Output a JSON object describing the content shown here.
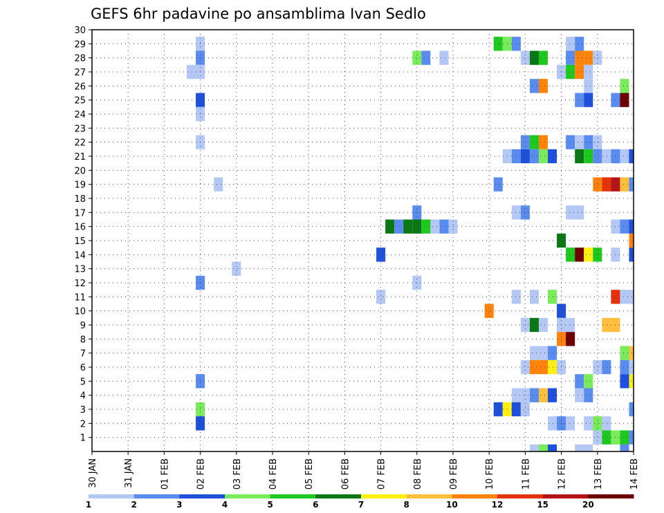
{
  "chart_data": {
    "type": "heatmap",
    "title": "GEFS 6hr padavine po ansamblima Ivan Sedlo",
    "xlabel": "",
    "ylabel": "",
    "x_tick_labels": [
      "30 JAN",
      "31 JAN",
      "01 FEB",
      "02 FEB",
      "03 FEB",
      "04 FEB",
      "05 FEB",
      "06 FEB",
      "07 FEB",
      "08 FEB",
      "09 FEB",
      "10 FEB",
      "11 FEB",
      "12 FEB",
      "13 FEB",
      "14 FEB"
    ],
    "y_tick_labels": [
      "1",
      "2",
      "3",
      "4",
      "5",
      "6",
      "7",
      "8",
      "9",
      "10",
      "11",
      "12",
      "13",
      "14",
      "15",
      "16",
      "17",
      "18",
      "19",
      "20",
      "21",
      "22",
      "23",
      "24",
      "25",
      "26",
      "27",
      "28",
      "29",
      "30"
    ],
    "x_unit": "6-hour step from 30 JAN 00Z",
    "x_range": [
      0,
      60
    ],
    "y_range": [
      0,
      30
    ],
    "grid": true,
    "colorbar": {
      "tick_labels": [
        "1",
        "2",
        "3",
        "4",
        "5",
        "6",
        "7",
        "8",
        "10",
        "12",
        "15",
        "20"
      ],
      "colors": [
        "#b4c8f5",
        "#5a8cf0",
        "#1e50dc",
        "#7aeb5a",
        "#1ec81e",
        "#0a7814",
        "#fff014",
        "#ffbe3c",
        "#ff820a",
        "#e6320a",
        "#b41414",
        "#6e0000"
      ]
    },
    "cells": [
      {
        "x": 12,
        "y": 29,
        "v": 1
      },
      {
        "x": 12,
        "y": 28,
        "v": 2
      },
      {
        "x": 11,
        "y": 27,
        "v": 1
      },
      {
        "x": 12,
        "y": 27,
        "v": 1
      },
      {
        "x": 12,
        "y": 25,
        "v": 3
      },
      {
        "x": 12,
        "y": 24,
        "v": 1
      },
      {
        "x": 12,
        "y": 22,
        "v": 1
      },
      {
        "x": 14,
        "y": 19,
        "v": 1
      },
      {
        "x": 16,
        "y": 13,
        "v": 1
      },
      {
        "x": 12,
        "y": 12,
        "v": 2
      },
      {
        "x": 12,
        "y": 5,
        "v": 2
      },
      {
        "x": 12,
        "y": 3,
        "v": 4
      },
      {
        "x": 12,
        "y": 2,
        "v": 3
      },
      {
        "x": 36,
        "y": 28,
        "v": 4
      },
      {
        "x": 37,
        "y": 28,
        "v": 2
      },
      {
        "x": 39,
        "y": 28,
        "v": 1
      },
      {
        "x": 36,
        "y": 17,
        "v": 2
      },
      {
        "x": 33,
        "y": 16,
        "v": 6
      },
      {
        "x": 34,
        "y": 16,
        "v": 2
      },
      {
        "x": 35,
        "y": 16,
        "v": 6
      },
      {
        "x": 36,
        "y": 16,
        "v": 6
      },
      {
        "x": 37,
        "y": 16,
        "v": 5
      },
      {
        "x": 38,
        "y": 16,
        "v": 1
      },
      {
        "x": 39,
        "y": 16,
        "v": 2
      },
      {
        "x": 40,
        "y": 16,
        "v": 1
      },
      {
        "x": 32,
        "y": 14,
        "v": 3
      },
      {
        "x": 36,
        "y": 12,
        "v": 1
      },
      {
        "x": 32,
        "y": 11,
        "v": 1
      },
      {
        "x": 45,
        "y": 29,
        "v": 5
      },
      {
        "x": 46,
        "y": 29,
        "v": 4
      },
      {
        "x": 47,
        "y": 29,
        "v": 2
      },
      {
        "x": 53,
        "y": 29,
        "v": 1
      },
      {
        "x": 54,
        "y": 29,
        "v": 2
      },
      {
        "x": 48,
        "y": 28,
        "v": 1
      },
      {
        "x": 49,
        "y": 28,
        "v": 6
      },
      {
        "x": 50,
        "y": 28,
        "v": 5
      },
      {
        "x": 53,
        "y": 28,
        "v": 2
      },
      {
        "x": 54,
        "y": 28,
        "v": 9
      },
      {
        "x": 55,
        "y": 28,
        "v": 9
      },
      {
        "x": 56,
        "y": 28,
        "v": 1
      },
      {
        "x": 52,
        "y": 27,
        "v": 1
      },
      {
        "x": 53,
        "y": 27,
        "v": 5
      },
      {
        "x": 54,
        "y": 27,
        "v": 9
      },
      {
        "x": 55,
        "y": 27,
        "v": 1
      },
      {
        "x": 49,
        "y": 26,
        "v": 2
      },
      {
        "x": 50,
        "y": 26,
        "v": 9
      },
      {
        "x": 55,
        "y": 26,
        "v": 1
      },
      {
        "x": 59,
        "y": 26,
        "v": 4
      },
      {
        "x": 54,
        "y": 25,
        "v": 2
      },
      {
        "x": 55,
        "y": 25,
        "v": 3
      },
      {
        "x": 58,
        "y": 25,
        "v": 2
      },
      {
        "x": 59,
        "y": 25,
        "v": 12
      },
      {
        "x": 48,
        "y": 22,
        "v": 2
      },
      {
        "x": 49,
        "y": 22,
        "v": 5
      },
      {
        "x": 50,
        "y": 22,
        "v": 9
      },
      {
        "x": 53,
        "y": 22,
        "v": 2
      },
      {
        "x": 54,
        "y": 22,
        "v": 1
      },
      {
        "x": 55,
        "y": 22,
        "v": 2
      },
      {
        "x": 56,
        "y": 22,
        "v": 1
      },
      {
        "x": 46,
        "y": 21,
        "v": 1
      },
      {
        "x": 47,
        "y": 21,
        "v": 2
      },
      {
        "x": 48,
        "y": 21,
        "v": 3
      },
      {
        "x": 49,
        "y": 21,
        "v": 2
      },
      {
        "x": 50,
        "y": 21,
        "v": 4
      },
      {
        "x": 51,
        "y": 21,
        "v": 3
      },
      {
        "x": 54,
        "y": 21,
        "v": 6
      },
      {
        "x": 55,
        "y": 21,
        "v": 5
      },
      {
        "x": 56,
        "y": 21,
        "v": 2
      },
      {
        "x": 57,
        "y": 21,
        "v": 1
      },
      {
        "x": 58,
        "y": 21,
        "v": 2
      },
      {
        "x": 59,
        "y": 21,
        "v": 1
      },
      {
        "x": 60,
        "y": 21,
        "v": 3
      },
      {
        "x": 45,
        "y": 19,
        "v": 2
      },
      {
        "x": 56,
        "y": 19,
        "v": 9
      },
      {
        "x": 57,
        "y": 19,
        "v": 10
      },
      {
        "x": 58,
        "y": 19,
        "v": 11
      },
      {
        "x": 59,
        "y": 19,
        "v": 8
      },
      {
        "x": 60,
        "y": 19,
        "v": 2
      },
      {
        "x": 47,
        "y": 17,
        "v": 1
      },
      {
        "x": 48,
        "y": 17,
        "v": 2
      },
      {
        "x": 53,
        "y": 17,
        "v": 1
      },
      {
        "x": 54,
        "y": 17,
        "v": 1
      },
      {
        "x": 58,
        "y": 16,
        "v": 1
      },
      {
        "x": 59,
        "y": 16,
        "v": 2
      },
      {
        "x": 60,
        "y": 16,
        "v": 3
      },
      {
        "x": 52,
        "y": 15,
        "v": 6
      },
      {
        "x": 60,
        "y": 15,
        "v": 9
      },
      {
        "x": 53,
        "y": 14,
        "v": 5
      },
      {
        "x": 54,
        "y": 14,
        "v": 12
      },
      {
        "x": 55,
        "y": 14,
        "v": 7
      },
      {
        "x": 56,
        "y": 14,
        "v": 5
      },
      {
        "x": 58,
        "y": 14,
        "v": 1
      },
      {
        "x": 60,
        "y": 14,
        "v": 3
      },
      {
        "x": 47,
        "y": 11,
        "v": 1
      },
      {
        "x": 49,
        "y": 11,
        "v": 1
      },
      {
        "x": 51,
        "y": 11,
        "v": 4
      },
      {
        "x": 58,
        "y": 11,
        "v": 10
      },
      {
        "x": 59,
        "y": 11,
        "v": 1
      },
      {
        "x": 60,
        "y": 11,
        "v": 1
      },
      {
        "x": 44,
        "y": 10,
        "v": 9
      },
      {
        "x": 52,
        "y": 10,
        "v": 3
      },
      {
        "x": 48,
        "y": 9,
        "v": 1
      },
      {
        "x": 49,
        "y": 9,
        "v": 6
      },
      {
        "x": 50,
        "y": 9,
        "v": 1
      },
      {
        "x": 52,
        "y": 9,
        "v": 1
      },
      {
        "x": 53,
        "y": 9,
        "v": 1
      },
      {
        "x": 57,
        "y": 9,
        "v": 8
      },
      {
        "x": 58,
        "y": 9,
        "v": 8
      },
      {
        "x": 52,
        "y": 8,
        "v": 9
      },
      {
        "x": 53,
        "y": 8,
        "v": 12
      },
      {
        "x": 49,
        "y": 7,
        "v": 1
      },
      {
        "x": 50,
        "y": 7,
        "v": 1
      },
      {
        "x": 51,
        "y": 7,
        "v": 2
      },
      {
        "x": 59,
        "y": 7,
        "v": 4
      },
      {
        "x": 60,
        "y": 7,
        "v": 8
      },
      {
        "x": 48,
        "y": 6,
        "v": 1
      },
      {
        "x": 49,
        "y": 6,
        "v": 9
      },
      {
        "x": 50,
        "y": 6,
        "v": 9
      },
      {
        "x": 51,
        "y": 6,
        "v": 7
      },
      {
        "x": 52,
        "y": 6,
        "v": 1
      },
      {
        "x": 56,
        "y": 6,
        "v": 1
      },
      {
        "x": 57,
        "y": 6,
        "v": 2
      },
      {
        "x": 59,
        "y": 6,
        "v": 2
      },
      {
        "x": 60,
        "y": 6,
        "v": 1
      },
      {
        "x": 54,
        "y": 5,
        "v": 2
      },
      {
        "x": 55,
        "y": 5,
        "v": 4
      },
      {
        "x": 59,
        "y": 5,
        "v": 3
      },
      {
        "x": 60,
        "y": 5,
        "v": 7
      },
      {
        "x": 47,
        "y": 4,
        "v": 1
      },
      {
        "x": 48,
        "y": 4,
        "v": 1
      },
      {
        "x": 49,
        "y": 4,
        "v": 2
      },
      {
        "x": 50,
        "y": 4,
        "v": 8
      },
      {
        "x": 51,
        "y": 4,
        "v": 3
      },
      {
        "x": 54,
        "y": 4,
        "v": 1
      },
      {
        "x": 55,
        "y": 4,
        "v": 2
      },
      {
        "x": 45,
        "y": 3,
        "v": 3
      },
      {
        "x": 46,
        "y": 3,
        "v": 7
      },
      {
        "x": 47,
        "y": 3,
        "v": 3
      },
      {
        "x": 48,
        "y": 3,
        "v": 1
      },
      {
        "x": 60,
        "y": 3,
        "v": 2
      },
      {
        "x": 51,
        "y": 2,
        "v": 1
      },
      {
        "x": 52,
        "y": 2,
        "v": 2
      },
      {
        "x": 53,
        "y": 2,
        "v": 1
      },
      {
        "x": 55,
        "y": 2,
        "v": 1
      },
      {
        "x": 56,
        "y": 2,
        "v": 4
      },
      {
        "x": 57,
        "y": 2,
        "v": 1
      },
      {
        "x": 56,
        "y": 1,
        "v": 1
      },
      {
        "x": 57,
        "y": 1,
        "v": 5
      },
      {
        "x": 58,
        "y": 1,
        "v": 4
      },
      {
        "x": 59,
        "y": 1,
        "v": 5
      },
      {
        "x": 60,
        "y": 1,
        "v": 2
      },
      {
        "x": 49,
        "y": 0,
        "v": 1
      },
      {
        "x": 50,
        "y": 0,
        "v": 4
      },
      {
        "x": 51,
        "y": 0,
        "v": 3
      },
      {
        "x": 54,
        "y": 0,
        "v": 1
      },
      {
        "x": 55,
        "y": 0,
        "v": 1
      },
      {
        "x": 59,
        "y": 0,
        "v": 2
      }
    ]
  }
}
